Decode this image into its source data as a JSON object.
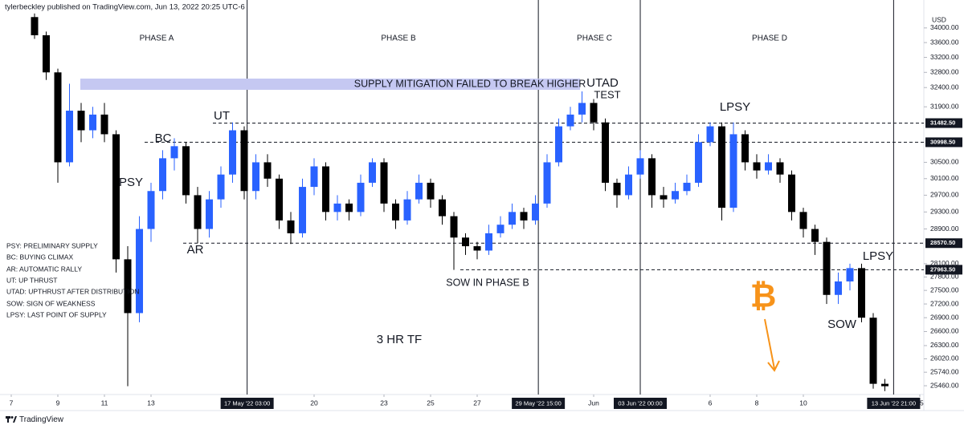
{
  "header": "tylerbeckley published on TradingView.com, Jun 13, 2022 20:25 UTC-6",
  "footer": "TradingView",
  "chart_data": {
    "type": "candlestick",
    "y_axis_label": "USD",
    "log_scale": true,
    "up_color": "#2962ff",
    "down_color": "#000000",
    "xlim": [
      6.517,
      46.172
    ],
    "ylim": [
      25280,
      34440
    ],
    "xticks": [
      7,
      9,
      11,
      13,
      20,
      23,
      25,
      27,
      {
        "value": 32,
        "label": "Jun"
      },
      {
        "value": 37,
        "label": "6"
      },
      {
        "value": 39,
        "label": "8"
      },
      {
        "value": 41,
        "label": "10"
      },
      {
        "value": 46,
        "label": "15"
      }
    ],
    "xmarkers": [
      {
        "value": 17.125,
        "label": "17 May '22   03:00"
      },
      {
        "value": 29.625,
        "label": "29 May '22   15:00"
      },
      {
        "value": 34.0,
        "label": "03 Jun '22   00:00"
      },
      {
        "value": 44.875,
        "label": "13 Jun '22   21:00"
      }
    ],
    "yticks": [
      {
        "value": 34000,
        "label": "34000.00"
      },
      {
        "value": 33600,
        "label": "33600.00"
      },
      {
        "value": 33200,
        "label": "33200.00"
      },
      {
        "value": 32800,
        "label": "32800.00"
      },
      {
        "value": 32400,
        "label": "32400.00"
      },
      {
        "value": 31900,
        "label": "31900.00"
      },
      {
        "value": 30500,
        "label": "30500.00"
      },
      {
        "value": 30100,
        "label": "30100.00"
      },
      {
        "value": 29700,
        "label": "29700.00"
      },
      {
        "value": 29300,
        "label": "29300.00"
      },
      {
        "value": 28900,
        "label": "28900.00"
      },
      {
        "value": 28100,
        "label": "28100.00"
      },
      {
        "value": 27800,
        "label": "27800.00"
      },
      {
        "value": 27500,
        "label": "27500.00"
      },
      {
        "value": 27200,
        "label": "27200.00"
      },
      {
        "value": 26900,
        "label": "26900.00"
      },
      {
        "value": 26600,
        "label": "26600.00"
      },
      {
        "value": 26300,
        "label": "26300.00"
      },
      {
        "value": 26020,
        "label": "26020.00"
      },
      {
        "value": 25740,
        "label": "25740.00"
      },
      {
        "value": 25460,
        "label": "25460.00"
      }
    ],
    "levels": [
      {
        "value": 31482.5,
        "label": "31482.50"
      },
      {
        "value": 30998.5,
        "label": "30998.50"
      },
      {
        "value": 28570.5,
        "label": "28570.50"
      },
      {
        "value": 27963.5,
        "label": "27963.50"
      }
    ],
    "phases": [
      "PHASE A",
      "PHASE B",
      "PHASE C",
      "PHASE D"
    ],
    "annotations": [
      "SUPPLY MITIGATION FAILED TO BREAK HIGHER",
      "UTAD",
      "TEST",
      "LPSY",
      "UT",
      "BC",
      "PSY",
      "AR",
      "SOW IN PHASE B",
      "SOW",
      "LPSY",
      "3 HR TF"
    ],
    "legend_notes": [
      "PSY: PRELIMINARY SUPPLY",
      "BC: BUYING CLIMAX",
      "AR: AUTOMATIC RALLY",
      "UT: UP THRUST",
      "UTAD: UPTHRUST AFTER DISTRIBUTION",
      "SOW: SIGN OF WEAKNESS",
      "LPSY: LAST POINT OF SUPPLY"
    ],
    "x": [
      8.0,
      8.5,
      9.0,
      9.5,
      10.0,
      10.5,
      11.0,
      11.5,
      12.0,
      12.5,
      13.0,
      13.5,
      14.0,
      14.5,
      15.0,
      15.5,
      16.0,
      16.5,
      17.0,
      17.5,
      18.0,
      18.5,
      19.0,
      19.5,
      20.0,
      20.5,
      21.0,
      21.5,
      22.0,
      22.5,
      23.0,
      23.5,
      24.0,
      24.5,
      25.0,
      25.5,
      26.0,
      26.5,
      27.0,
      27.5,
      28.0,
      28.5,
      29.0,
      29.5,
      30.0,
      30.5,
      31.0,
      31.5,
      32.0,
      32.5,
      33.0,
      33.5,
      34.0,
      34.5,
      35.0,
      35.5,
      36.0,
      36.5,
      37.0,
      37.5,
      38.0,
      38.5,
      39.0,
      39.5,
      40.0,
      40.5,
      41.0,
      41.5,
      42.0,
      42.5,
      43.0,
      43.5,
      44.0,
      44.5
    ],
    "open": [
      34300,
      33800,
      32800,
      30500,
      31800,
      31300,
      31700,
      31200,
      28200,
      27000,
      28900,
      29800,
      30600,
      30900,
      29700,
      28900,
      29600,
      30200,
      31300,
      29800,
      30500,
      30100,
      29100,
      28800,
      29900,
      30400,
      29300,
      29500,
      29300,
      30000,
      30500,
      29500,
      29100,
      29600,
      30000,
      29600,
      29200,
      28700,
      28500,
      28400,
      28800,
      29000,
      29300,
      29100,
      29500,
      30500,
      31400,
      31700,
      32000,
      31500,
      30000,
      29700,
      30200,
      30600,
      29700,
      29600,
      29800,
      30000,
      31000,
      31400,
      29400,
      31200,
      30500,
      30300,
      30500,
      30200,
      29300,
      28900,
      28600,
      27400,
      27700,
      28000,
      26900,
      25500
    ],
    "high": [
      34400,
      33900,
      32900,
      32500,
      32000,
      31900,
      32000,
      31300,
      28500,
      29200,
      30000,
      30800,
      31100,
      31000,
      29900,
      29800,
      30400,
      31500,
      31400,
      30700,
      30700,
      30200,
      29300,
      30100,
      30600,
      30500,
      29700,
      29600,
      30200,
      30600,
      30600,
      29600,
      29800,
      30200,
      30100,
      29700,
      29300,
      28800,
      28600,
      29000,
      29200,
      29500,
      29400,
      29700,
      30700,
      31600,
      31900,
      32300,
      32100,
      31600,
      30100,
      30400,
      30800,
      30700,
      29900,
      30000,
      30200,
      31200,
      31500,
      31500,
      31500,
      31300,
      30700,
      30700,
      30600,
      30300,
      29400,
      29000,
      28700,
      27900,
      28100,
      28100,
      27000,
      25600
    ],
    "low": [
      33700,
      32600,
      30000,
      30400,
      31000,
      31100,
      31000,
      27900,
      25450,
      26800,
      28600,
      29600,
      30300,
      29500,
      28570,
      28700,
      29400,
      30000,
      29600,
      29600,
      29900,
      28900,
      28550,
      28700,
      29700,
      29100,
      29100,
      29100,
      29200,
      29900,
      29300,
      28900,
      29000,
      29500,
      29400,
      29000,
      27960,
      28300,
      28200,
      28300,
      28700,
      28900,
      28900,
      29000,
      29400,
      30400,
      31300,
      31500,
      31300,
      29800,
      29400,
      29600,
      30100,
      29400,
      29400,
      29500,
      29700,
      29900,
      30900,
      29100,
      29300,
      30300,
      30100,
      30200,
      30000,
      29100,
      28700,
      28300,
      27200,
      27200,
      27500,
      26800,
      25400,
      25350
    ],
    "close": [
      33800,
      32800,
      30500,
      31800,
      31300,
      31700,
      31200,
      28200,
      27000,
      28900,
      29800,
      30600,
      30900,
      29700,
      28900,
      29600,
      30200,
      31300,
      29800,
      30500,
      30100,
      29100,
      28800,
      29900,
      30400,
      29300,
      29500,
      29300,
      30000,
      30500,
      29500,
      29100,
      29600,
      30000,
      29600,
      29200,
      28700,
      28500,
      28400,
      28800,
      29000,
      29300,
      29100,
      29500,
      30500,
      31400,
      31700,
      32000,
      31500,
      30000,
      29700,
      30200,
      30600,
      29700,
      29600,
      29800,
      30000,
      31000,
      31400,
      29400,
      31200,
      30500,
      30300,
      30500,
      30200,
      29300,
      28900,
      28600,
      27400,
      27700,
      28000,
      26900,
      25500,
      25450
    ]
  }
}
